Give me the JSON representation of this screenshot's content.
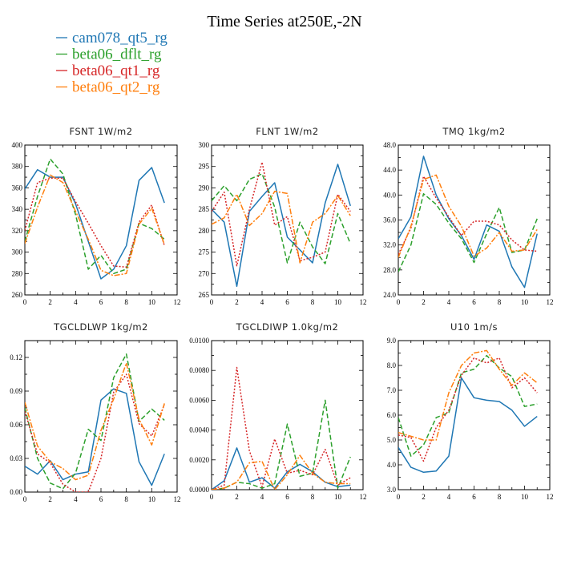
{
  "figure_title": "Time Series at250E,-2N",
  "legend": [
    {
      "label": "cam078_qt5_rg",
      "color": "#1f77b4",
      "dash": "solid"
    },
    {
      "label": "beta06_dflt_rg",
      "color": "#2ca02c",
      "dash": "dashed"
    },
    {
      "label": "beta06_qt1_rg",
      "color": "#d62728",
      "dash": "dotted"
    },
    {
      "label": "beta06_qt2_rg",
      "color": "#ff7f0e",
      "dash": "dashdot"
    }
  ],
  "chart_data": [
    {
      "type": "line",
      "title": "FSNT   1W/m2",
      "x": [
        0,
        1,
        2,
        3,
        4,
        5,
        6,
        7,
        8,
        9,
        10,
        11
      ],
      "xlim": [
        0,
        12
      ],
      "xticks": [
        0,
        2,
        4,
        6,
        8,
        10,
        12
      ],
      "ylim": [
        260,
        400
      ],
      "yticks": [
        260,
        280,
        300,
        320,
        340,
        360,
        380,
        400
      ],
      "ytick_labels": [
        "260",
        "280",
        "300",
        "320",
        "340",
        "360",
        "380",
        "400"
      ],
      "series": [
        {
          "name": "cam078_qt5_rg",
          "values": [
            359,
            377,
            370,
            370,
            345,
            310,
            275,
            284,
            306,
            367,
            379,
            346
          ]
        },
        {
          "name": "beta06_dflt_rg",
          "values": [
            310,
            352,
            387,
            373,
            335,
            284,
            297,
            280,
            284,
            327,
            322,
            312
          ]
        },
        {
          "name": "beta06_qt1_rg",
          "values": [
            320,
            365,
            369,
            369,
            347,
            327,
            306,
            287,
            286,
            328,
            344,
            306
          ]
        },
        {
          "name": "beta06_qt2_rg",
          "values": [
            308,
            342,
            372,
            365,
            338,
            312,
            283,
            278,
            280,
            326,
            341,
            307
          ]
        }
      ]
    },
    {
      "type": "line",
      "title": "FLNT   1W/m2",
      "x": [
        0,
        1,
        2,
        3,
        4,
        5,
        6,
        7,
        8,
        9,
        10,
        11
      ],
      "xlim": [
        0,
        12
      ],
      "xticks": [
        0,
        2,
        4,
        6,
        8,
        10,
        12
      ],
      "ylim": [
        265,
        300
      ],
      "yticks": [
        265,
        270,
        275,
        280,
        285,
        290,
        295,
        300
      ],
      "ytick_labels": [
        "265",
        "270",
        "275",
        "280",
        "285",
        "290",
        "295",
        "300"
      ],
      "series": [
        {
          "name": "cam078_qt5_rg",
          "values": [
            285,
            282,
            267,
            284.5,
            288,
            291.2,
            278.5,
            275.5,
            272.5,
            286.5,
            295.5,
            285.8
          ]
        },
        {
          "name": "beta06_dflt_rg",
          "values": [
            287,
            290.5,
            287,
            292,
            293.3,
            285.5,
            272.5,
            282,
            276.2,
            272.3,
            284,
            277
          ]
        },
        {
          "name": "beta06_qt1_rg",
          "values": [
            284.5,
            289,
            271.8,
            285,
            296,
            281.3,
            283.3,
            273,
            273.8,
            275,
            288.5,
            284.5
          ]
        },
        {
          "name": "beta06_qt2_rg",
          "values": [
            281.5,
            283,
            288.5,
            281.2,
            284,
            289.2,
            288.7,
            272.5,
            282,
            284,
            288.2,
            283.5
          ]
        }
      ]
    },
    {
      "type": "line",
      "title": "TMQ   1kg/m2",
      "x": [
        0,
        1,
        2,
        3,
        4,
        5,
        6,
        7,
        8,
        9,
        10,
        11
      ],
      "xlim": [
        0,
        12
      ],
      "xticks": [
        0,
        2,
        4,
        6,
        8,
        10,
        12
      ],
      "ylim": [
        24,
        48
      ],
      "yticks": [
        24,
        28,
        32,
        36,
        40,
        44,
        48
      ],
      "ytick_labels": [
        "24.0",
        "28.0",
        "32.0",
        "36.0",
        "40.0",
        "44.0",
        "48.0"
      ],
      "series": [
        {
          "name": "cam078_qt5_rg",
          "values": [
            33,
            36.5,
            46.2,
            40,
            36.2,
            33.5,
            29.7,
            35.2,
            34.2,
            28.5,
            25.2,
            33.8
          ]
        },
        {
          "name": "beta06_dflt_rg",
          "values": [
            27.7,
            32,
            40.2,
            38.5,
            35.5,
            33,
            29.2,
            33.8,
            38,
            30.8,
            31.2,
            36.2
          ]
        },
        {
          "name": "beta06_qt1_rg",
          "values": [
            30.5,
            34.7,
            43,
            39.5,
            36.5,
            33.5,
            35.8,
            35.8,
            35.2,
            32.8,
            31.2,
            31
          ]
        },
        {
          "name": "beta06_qt2_rg",
          "values": [
            30,
            35,
            42.5,
            43.2,
            38.2,
            35,
            30.2,
            31.5,
            34,
            31,
            31.2,
            34.5
          ]
        }
      ]
    },
    {
      "type": "line",
      "title": "TGCLDLWP   1kg/m2",
      "x": [
        0,
        1,
        2,
        3,
        4,
        5,
        6,
        7,
        8,
        9,
        10,
        11
      ],
      "xlim": [
        0,
        12
      ],
      "xticks": [
        0,
        2,
        4,
        6,
        8,
        10,
        12
      ],
      "ylim": [
        0,
        0.135
      ],
      "yticks": [
        0,
        0.03,
        0.06,
        0.09,
        0.12
      ],
      "ytick_labels": [
        "0.00",
        "0.03",
        "0.06",
        "0.09",
        "0.12"
      ],
      "series": [
        {
          "name": "cam078_qt5_rg",
          "values": [
            0.023,
            0.016,
            0.028,
            0.011,
            0.016,
            0.018,
            0.082,
            0.092,
            0.088,
            0.027,
            0.006,
            0.034
          ]
        },
        {
          "name": "beta06_dflt_rg",
          "values": [
            0.075,
            0.03,
            0.008,
            0.003,
            0.017,
            0.056,
            0.046,
            0.102,
            0.123,
            0.063,
            0.074,
            0.064
          ]
        },
        {
          "name": "beta06_qt1_rg",
          "values": [
            0.072,
            0.034,
            0.026,
            0.007,
            0.0,
            0.0,
            0.03,
            0.089,
            0.105,
            0.061,
            0.05,
            0.078
          ]
        },
        {
          "name": "beta06_qt2_rg",
          "values": [
            0.08,
            0.041,
            0.027,
            0.021,
            0.011,
            0.015,
            0.055,
            0.083,
            0.115,
            0.065,
            0.042,
            0.079
          ]
        }
      ]
    },
    {
      "type": "line",
      "title": "TGCLDIWP   1.0kg/m2",
      "x": [
        0,
        1,
        2,
        3,
        4,
        5,
        6,
        7,
        8,
        9,
        10,
        11
      ],
      "xlim": [
        0,
        12
      ],
      "xticks": [
        0,
        2,
        4,
        6,
        8,
        10,
        12
      ],
      "ylim": [
        0,
        0.01
      ],
      "yticks": [
        0,
        0.002,
        0.004,
        0.006,
        0.008,
        0.01
      ],
      "ytick_labels": [
        "0.0000",
        "0.0020",
        "0.0040",
        "0.0060",
        "0.0080",
        "0.0100"
      ],
      "series": [
        {
          "name": "cam078_qt5_rg",
          "values": [
            0.0,
            0.0006,
            0.0028,
            0.0005,
            0.0008,
            0.0001,
            0.0012,
            0.0017,
            0.0012,
            0.0005,
            0.0002,
            0.0003
          ]
        },
        {
          "name": "beta06_dflt_rg",
          "values": [
            0.0,
            0.0001,
            0.0005,
            0.0004,
            0.0001,
            0.0004,
            0.0044,
            0.0009,
            0.0011,
            0.006,
            0.0001,
            0.0022
          ]
        },
        {
          "name": "beta06_qt1_rg",
          "values": [
            0.0,
            0.0003,
            0.0082,
            0.0026,
            0.0002,
            0.0034,
            0.0011,
            0.0013,
            0.001,
            0.0027,
            0.0003,
            0.0008
          ]
        },
        {
          "name": "beta06_qt2_rg",
          "values": [
            0.0,
            0.0001,
            0.0005,
            0.0018,
            0.0019,
            0.0,
            0.001,
            0.0023,
            0.0011,
            0.0005,
            0.0004,
            0.0004
          ]
        }
      ]
    },
    {
      "type": "line",
      "title": "U10   1m/s",
      "x": [
        0,
        1,
        2,
        3,
        4,
        5,
        6,
        7,
        8,
        9,
        10,
        11
      ],
      "xlim": [
        0,
        12
      ],
      "xticks": [
        0,
        2,
        4,
        6,
        8,
        10,
        12
      ],
      "ylim": [
        3,
        9
      ],
      "yticks": [
        3,
        4,
        5,
        6,
        7,
        8,
        9
      ],
      "ytick_labels": [
        "3.0",
        "4.0",
        "5.0",
        "6.0",
        "7.0",
        "8.0",
        "9.0"
      ],
      "series": [
        {
          "name": "cam078_qt5_rg",
          "values": [
            4.7,
            3.9,
            3.7,
            3.75,
            4.35,
            7.5,
            6.7,
            6.6,
            6.55,
            6.2,
            5.55,
            5.95
          ]
        },
        {
          "name": "beta06_dflt_rg",
          "values": [
            5.9,
            4.35,
            4.8,
            5.9,
            6.1,
            7.7,
            7.85,
            8.4,
            7.9,
            7.55,
            6.35,
            6.45
          ]
        },
        {
          "name": "beta06_qt1_rg",
          "values": [
            5.2,
            5.1,
            4.15,
            5.5,
            6.2,
            7.6,
            8.3,
            8.1,
            8.3,
            7.1,
            7.5,
            6.9
          ]
        },
        {
          "name": "beta06_qt2_rg",
          "values": [
            5.3,
            5.15,
            5.0,
            5.0,
            6.9,
            8.0,
            8.5,
            8.6,
            7.85,
            7.2,
            7.7,
            7.3
          ]
        }
      ]
    }
  ]
}
